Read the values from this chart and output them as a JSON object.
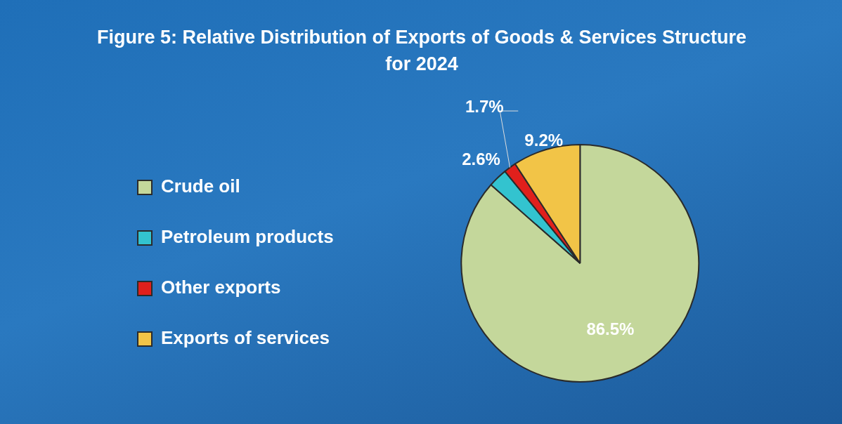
{
  "chart_data": {
    "type": "pie",
    "title": "Figure 5: Relative Distribution of Exports of Goods & Services Structure for 2024",
    "categories": [
      "Crude oil",
      "Petroleum products",
      "Other exports",
      "Exports of services"
    ],
    "values": [
      86.5,
      2.6,
      1.7,
      9.2
    ],
    "colors": [
      "#c4d79b",
      "#33c3cf",
      "#e0201c",
      "#f2c447"
    ],
    "value_labels": [
      "86.5%",
      "2.6%",
      "1.7%",
      "9.2%"
    ],
    "legend": "left"
  }
}
